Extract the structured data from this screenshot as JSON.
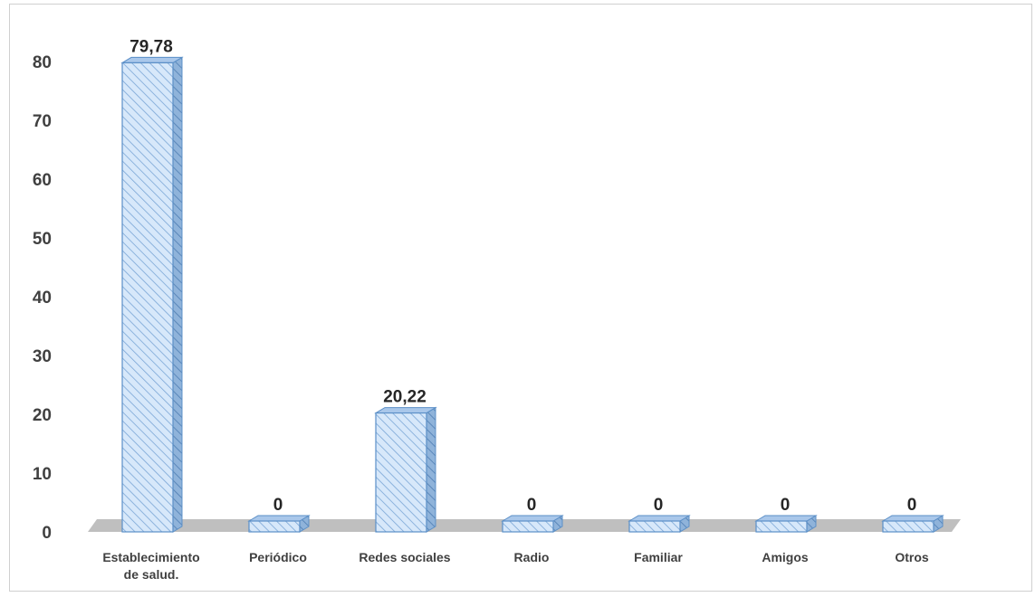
{
  "chart_data": {
    "type": "bar",
    "categories": [
      [
        "Establecimiento",
        "de salud."
      ],
      [
        "Periódico"
      ],
      [
        "Redes sociales"
      ],
      [
        "Radio"
      ],
      [
        "Familiar"
      ],
      [
        "Amigos"
      ],
      [
        "Otros"
      ]
    ],
    "values": [
      79.78,
      0,
      20.22,
      0,
      0,
      0,
      0
    ],
    "data_labels": [
      "79,78",
      "0",
      "20,22",
      "0",
      "0",
      "0",
      "0"
    ],
    "y_ticks": [
      0,
      10,
      20,
      30,
      40,
      50,
      60,
      70,
      80
    ],
    "ylim": [
      0,
      80
    ],
    "bar_3d": true,
    "bar_fill": "#cfe2f7",
    "bar_hatch": "#7aa6d6",
    "bar_stroke": "#5b8fc7",
    "floor_color": "#bfbfbf",
    "gridlines": false,
    "legend": "none"
  }
}
